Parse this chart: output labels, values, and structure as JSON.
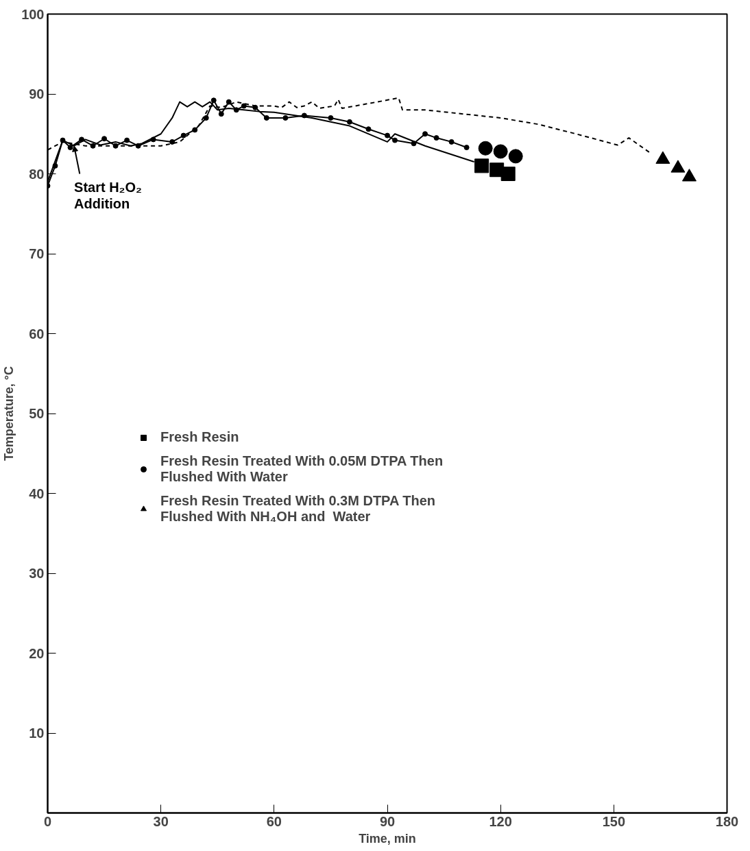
{
  "chart_data": {
    "type": "line",
    "xlabel": "Time, min",
    "ylabel": "Temperature, °C",
    "xlim": [
      0,
      180
    ],
    "ylim": [
      0,
      100
    ],
    "xticks": [
      0,
      30,
      60,
      90,
      120,
      150,
      180
    ],
    "yticks": [
      10,
      20,
      30,
      40,
      50,
      60,
      70,
      80,
      90,
      100
    ],
    "grid": false,
    "legend": "left",
    "annotations": [
      {
        "text": "Start H₂O₂\nAddition",
        "x": 7,
        "y": 83.5
      }
    ],
    "series": [
      {
        "color": "#000000",
        "line_style": "solid",
        "marker": "none",
        "x": [
          0,
          4,
          7,
          10,
          14,
          18,
          22,
          25,
          30,
          33,
          35,
          37,
          39,
          41,
          43,
          45,
          48,
          52,
          56,
          60,
          70,
          80,
          90,
          92,
          100,
          113
        ],
        "values": [
          79,
          84.2,
          83.5,
          84.3,
          83.6,
          84,
          83.5,
          83.8,
          85,
          87,
          89,
          88.4,
          89,
          88.4,
          89,
          88,
          88.2,
          88,
          87.8,
          87.7,
          87,
          86,
          84,
          85,
          83.5,
          81.5
        ]
      },
      {
        "color": "#000000",
        "line_style": "solid",
        "marker": "circle",
        "x": [
          0,
          2,
          4,
          6,
          9,
          12,
          15,
          18,
          21,
          24,
          28,
          33,
          36,
          39,
          42,
          44,
          46,
          48,
          50,
          52,
          55,
          58,
          63,
          68,
          75,
          80,
          85,
          90,
          92,
          97,
          100,
          103,
          107,
          111
        ],
        "values": [
          78.5,
          81,
          84.2,
          83.3,
          84.3,
          83.5,
          84.4,
          83.5,
          84.2,
          83.5,
          84.3,
          84,
          84.8,
          85.5,
          87,
          89.2,
          87.5,
          89,
          88,
          88.5,
          88.3,
          87,
          87,
          87.3,
          87,
          86.5,
          85.6,
          84.8,
          84.2,
          83.8,
          85,
          84.5,
          84,
          83.3
        ]
      },
      {
        "color": "#000000",
        "line_style": "dashed",
        "marker": "none",
        "x": [
          0,
          4,
          10,
          20,
          30,
          35,
          40,
          43,
          46,
          50,
          55,
          60,
          62,
          64,
          66,
          68,
          70,
          72,
          76,
          77,
          78,
          85,
          93,
          94,
          100,
          120,
          130,
          140,
          151,
          154,
          160
        ],
        "values": [
          83,
          84,
          83.5,
          83.5,
          83.5,
          84,
          86,
          88.5,
          88.3,
          89,
          88.5,
          88.5,
          88.3,
          89,
          88.3,
          88.5,
          89,
          88.2,
          88.5,
          89.3,
          88.2,
          88.8,
          89.5,
          88,
          88,
          87,
          86.2,
          85,
          83.6,
          84.5,
          82.5
        ]
      },
      {
        "type": "scatter",
        "name": "Fresh Resin",
        "color": "#000000",
        "marker": "square",
        "x": [
          115,
          119,
          122
        ],
        "values": [
          81,
          80.5,
          80
        ]
      },
      {
        "type": "scatter",
        "name": "Fresh Resin Treated With 0.05M DTPA Then\nFlushed With Water",
        "color": "#000000",
        "marker": "circle",
        "x": [
          116,
          120,
          124
        ],
        "values": [
          83.2,
          82.8,
          82.2
        ]
      },
      {
        "type": "scatter",
        "name": "Fresh Resin Treated With 0.3M DTPA Then\nFlushed With NH₄OH and  Water",
        "color": "#000000",
        "marker": "triangle",
        "x": [
          163,
          167,
          170
        ],
        "values": [
          81.8,
          80.7,
          79.6
        ]
      }
    ]
  }
}
